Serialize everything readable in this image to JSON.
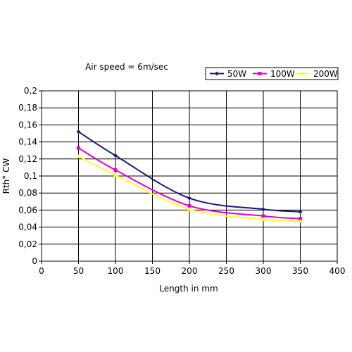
{
  "chart_data": {
    "type": "line",
    "annotation": "Air speed = 6m/sec",
    "xlabel": "Length in mm",
    "ylabel": "Rth° CW",
    "xlim": [
      0,
      400
    ],
    "ylim": [
      0,
      0.2
    ],
    "xticks": [
      0,
      50,
      100,
      150,
      200,
      250,
      300,
      350,
      400
    ],
    "xtick_labels": [
      "0",
      "50",
      "100",
      "150",
      "200",
      "250",
      "300",
      "350",
      "400"
    ],
    "yticks": [
      0,
      0.02,
      0.04,
      0.06,
      0.08,
      0.1,
      0.12,
      0.14,
      0.16,
      0.18,
      0.2
    ],
    "ytick_labels": [
      "0",
      "0,02",
      "0,04",
      "0,06",
      "0,08",
      "0,1",
      "0,12",
      "0,14",
      "0,16",
      "0,18",
      "0,2"
    ],
    "grid": true,
    "legend_position": "top-right",
    "x": [
      50,
      100,
      200,
      300,
      350
    ],
    "series": [
      {
        "name": "50W",
        "color": "#1a1a7a",
        "marker": "diamond",
        "values": [
          0.152,
          0.124,
          0.074,
          0.061,
          0.058
        ]
      },
      {
        "name": "100W",
        "color": "#e600c8",
        "marker": "square",
        "values": [
          0.133,
          0.107,
          0.065,
          0.053,
          0.05
        ]
      },
      {
        "name": "200W",
        "color": "#ffff33",
        "marker": "triangle",
        "values": [
          0.123,
          0.101,
          0.061,
          0.049,
          0.047
        ]
      }
    ]
  }
}
